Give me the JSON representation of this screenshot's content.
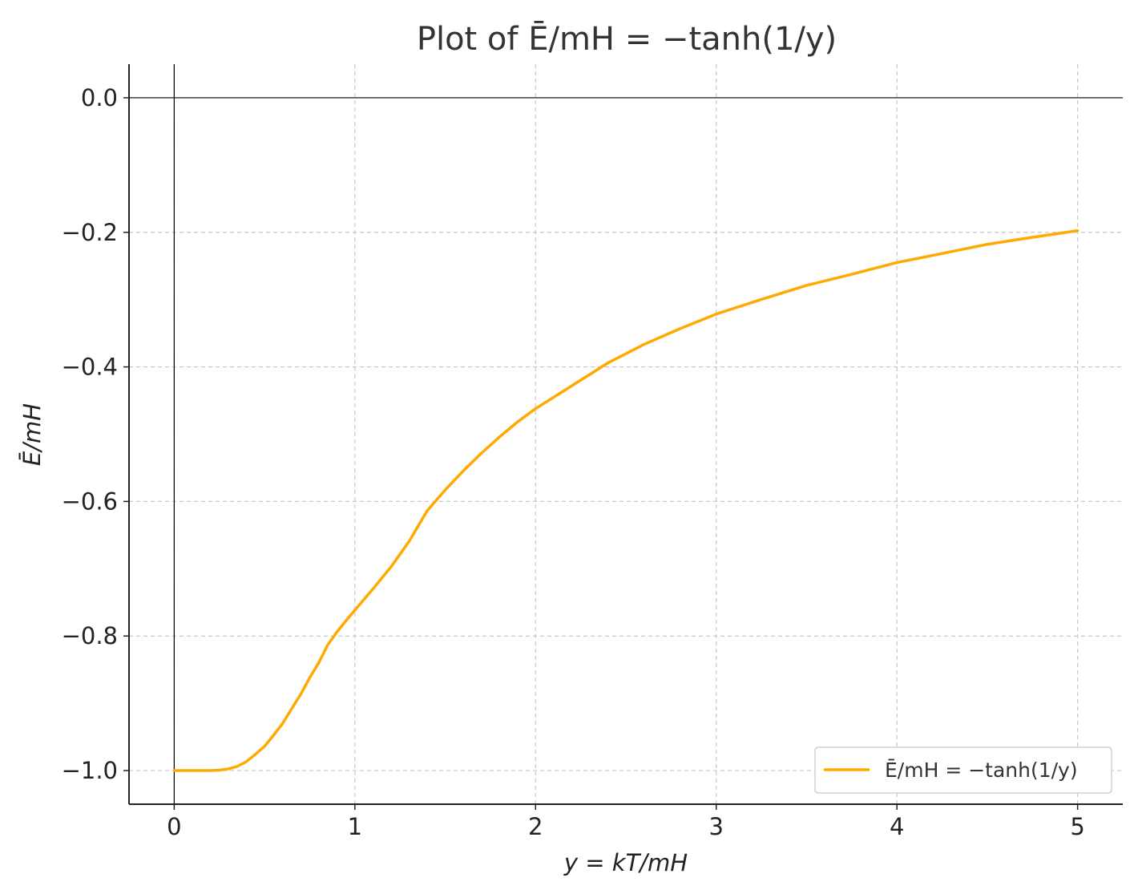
{
  "chart_data": {
    "type": "line",
    "title": "Plot of Ē/mH = −tanh(1/y)",
    "xlabel": "y = kT/mH",
    "ylabel": "Ē/mH",
    "xlim": [
      -0.25,
      5.25
    ],
    "ylim": [
      -1.05,
      0.05
    ],
    "x_ticks": [
      0,
      1,
      2,
      3,
      4,
      5
    ],
    "x_tick_labels": [
      "0",
      "1",
      "2",
      "3",
      "4",
      "5"
    ],
    "y_ticks": [
      0.0,
      -0.2,
      -0.4,
      -0.6,
      -0.8,
      -1.0
    ],
    "y_tick_labels": [
      "0.0",
      "−0.2",
      "−0.4",
      "−0.6",
      "−0.8",
      "−1.0"
    ],
    "grid": true,
    "reference_lines": {
      "x": 0,
      "y": 0
    },
    "legend_position": "bottom-right",
    "series": [
      {
        "name": "Ē/mH = −tanh(1/y)",
        "color": "#FFAA00",
        "x": [
          0.0,
          0.1,
          0.2,
          0.25,
          0.3,
          0.35,
          0.4,
          0.45,
          0.5,
          0.55,
          0.6,
          0.65,
          0.7,
          0.75,
          0.8,
          0.85,
          0.9,
          0.95,
          1.0,
          1.1,
          1.2,
          1.3,
          1.4,
          1.5,
          1.6,
          1.7,
          1.8,
          1.9,
          2.0,
          2.2,
          2.4,
          2.6,
          2.8,
          3.0,
          3.25,
          3.5,
          3.75,
          4.0,
          4.25,
          4.5,
          4.75,
          5.0
        ],
        "y": [
          -1.0,
          -1.0,
          -1.0,
          -0.9993,
          -0.9975,
          -0.9937,
          -0.9866,
          -0.9757,
          -0.964,
          -0.9475,
          -0.93,
          -0.908,
          -0.8868,
          -0.862,
          -0.8397,
          -0.813,
          -0.7942,
          -0.7775,
          -0.7616,
          -0.73,
          -0.6973,
          -0.6594,
          -0.6139,
          -0.5828,
          -0.5546,
          -0.5283,
          -0.5042,
          -0.4818,
          -0.4621,
          -0.4282,
          -0.3942,
          -0.3666,
          -0.3431,
          -0.3215,
          -0.2997,
          -0.2789,
          -0.2623,
          -0.2449,
          -0.2315,
          -0.2178,
          -0.2074,
          -0.1974
        ]
      }
    ]
  }
}
